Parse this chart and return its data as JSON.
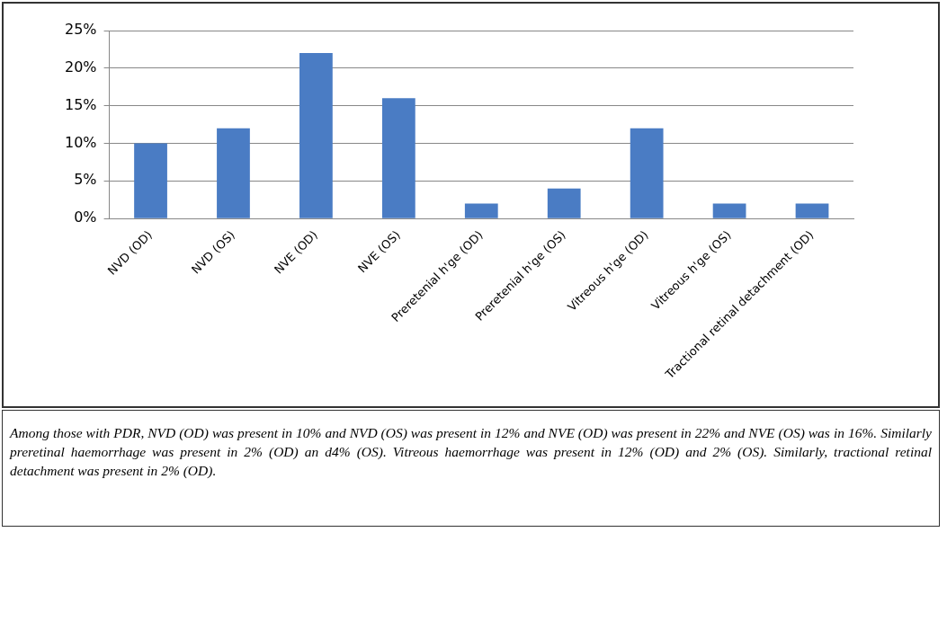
{
  "chart_data": {
    "type": "bar",
    "categories": [
      "NVD (OD)",
      "NVD (OS)",
      "NVE (OD)",
      "NVE (OS)",
      "Preretenial h'ge (OD)",
      "Preretenial h'ge (OS)",
      "Vitreous h'ge (OD)",
      "Vitreous h'ge (OS)",
      "Tractional retinal detachment (OD)"
    ],
    "values": [
      10,
      12,
      22,
      16,
      2,
      4,
      12,
      2,
      2
    ],
    "color": "#4a7cc4",
    "ylim": [
      0,
      25
    ],
    "yticks": [
      {
        "value": 0,
        "label": "0%"
      },
      {
        "value": 5,
        "label": "5%"
      },
      {
        "value": 10,
        "label": "10%"
      },
      {
        "value": 15,
        "label": "15%"
      },
      {
        "value": 20,
        "label": "20%"
      },
      {
        "value": 25,
        "label": "25%"
      }
    ],
    "grid": "y",
    "annotations": [
      "Among those with PDR, NVD (OD) was present in 10% and NVD (OS) was present in 12% and NVE (OD) was present in 22% and NVE (OS) was in 16%. Similarly preretinal haemorrhage was present in 2% (OD) an d4% (OS). Vitreous haemorrhage was present in 12% (OD) and 2% (OS). Similarly, tractional retinal detachment was present in 2% (OD)."
    ]
  }
}
